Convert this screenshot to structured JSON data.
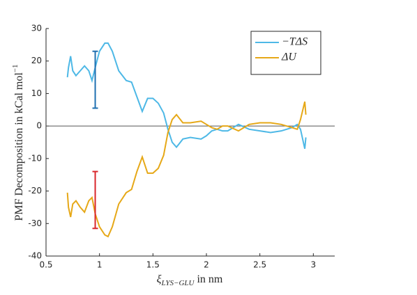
{
  "chart_data": {
    "type": "line",
    "xlabel": {
      "symbol": "ξ",
      "subscript": "LYS−GLU",
      "text": " in nm"
    },
    "ylabel": {
      "text": "PMF Decomposition in kCal mol",
      "superscript": "−1"
    },
    "x": [
      0.7,
      0.71,
      0.73,
      0.75,
      0.78,
      0.82,
      0.86,
      0.9,
      0.93,
      0.96,
      1.0,
      1.05,
      1.08,
      1.12,
      1.18,
      1.25,
      1.3,
      1.35,
      1.4,
      1.45,
      1.5,
      1.55,
      1.6,
      1.64,
      1.68,
      1.72,
      1.78,
      1.85,
      1.95,
      2.0,
      2.05,
      2.1,
      2.15,
      2.2,
      2.3,
      2.4,
      2.5,
      2.6,
      2.7,
      2.8,
      2.85,
      2.88,
      2.92,
      2.93
    ],
    "series": [
      {
        "name": "−TΔS",
        "color": "#4db8e6",
        "values": [
          15,
          18,
          21.5,
          17,
          15.5,
          17,
          18.5,
          17,
          14,
          18,
          23,
          25.5,
          25.5,
          23,
          17,
          14,
          13.5,
          9,
          4.5,
          8.5,
          8.5,
          7,
          4,
          -1,
          -5,
          -6.5,
          -4,
          -3.5,
          -4,
          -3,
          -1.5,
          -1,
          -1.5,
          -1.5,
          0.5,
          -1,
          -1.5,
          -2,
          -1.5,
          -0.5,
          0.5,
          -1,
          -7,
          -3.5
        ]
      },
      {
        "name": "ΔU",
        "color": "#e6a817",
        "values": [
          -20.5,
          -25,
          -28,
          -24,
          -23,
          -25,
          -26.5,
          -23,
          -22,
          -27,
          -31,
          -33.5,
          -34,
          -31,
          -24,
          -20.5,
          -19.5,
          -14,
          -9.5,
          -14.5,
          -14.5,
          -13,
          -9,
          -2,
          2,
          3.5,
          1,
          1,
          1.5,
          0.5,
          -0.5,
          -1,
          0,
          0,
          -1.5,
          0.5,
          1,
          1,
          0.5,
          -0.5,
          -1,
          2,
          7.5,
          3.5
        ]
      }
    ],
    "error_bars": [
      {
        "x": 0.96,
        "value": 14.25,
        "error": 8.75,
        "color": "#1f6fb0"
      },
      {
        "x": 0.96,
        "value": -22.75,
        "error": 8.75,
        "color": "#d9262b"
      }
    ],
    "reference_line": 0,
    "xlim": [
      0.5,
      3.2
    ],
    "ylim": [
      -40,
      30
    ],
    "xticks": [
      0.5,
      1,
      1.5,
      2,
      2.5,
      3
    ],
    "yticks": [
      -40,
      -30,
      -20,
      -10,
      0,
      10,
      20,
      30
    ],
    "legend": "upper right"
  }
}
